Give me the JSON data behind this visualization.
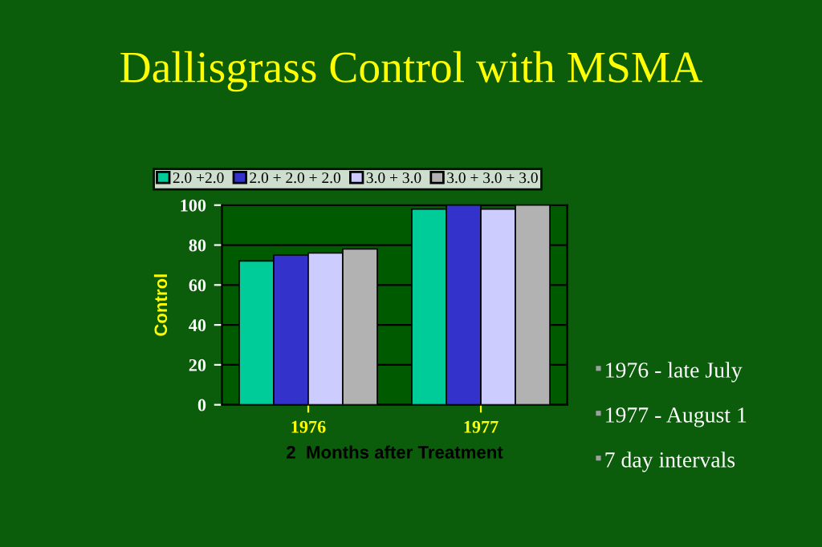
{
  "chart_data": {
    "type": "bar",
    "title": "Dallisgrass Control with MSMA",
    "xlabel": "2  Months after Treatment",
    "ylabel": "Control",
    "categories": [
      "1976",
      "1977"
    ],
    "series": [
      {
        "name": "2.0 +2.0",
        "color": "#00cc99",
        "values": [
          72,
          98
        ]
      },
      {
        "name": "2.0 + 2.0 + 2.0",
        "color": "#3333cc",
        "values": [
          75,
          100
        ]
      },
      {
        "name": "3.0 + 3.0",
        "color": "#ccccff",
        "values": [
          76,
          98
        ]
      },
      {
        "name": "3.0 + 3.0 + 3.0",
        "color": "#b2b2b2",
        "values": [
          78,
          100
        ]
      }
    ],
    "ylim": [
      0,
      100
    ],
    "yticks": [
      0,
      20,
      40,
      60,
      80,
      100
    ],
    "grid": "y",
    "legend": "top",
    "annotations": [
      "1976 - late July",
      "1977 - August 1",
      "7 day intervals"
    ]
  }
}
